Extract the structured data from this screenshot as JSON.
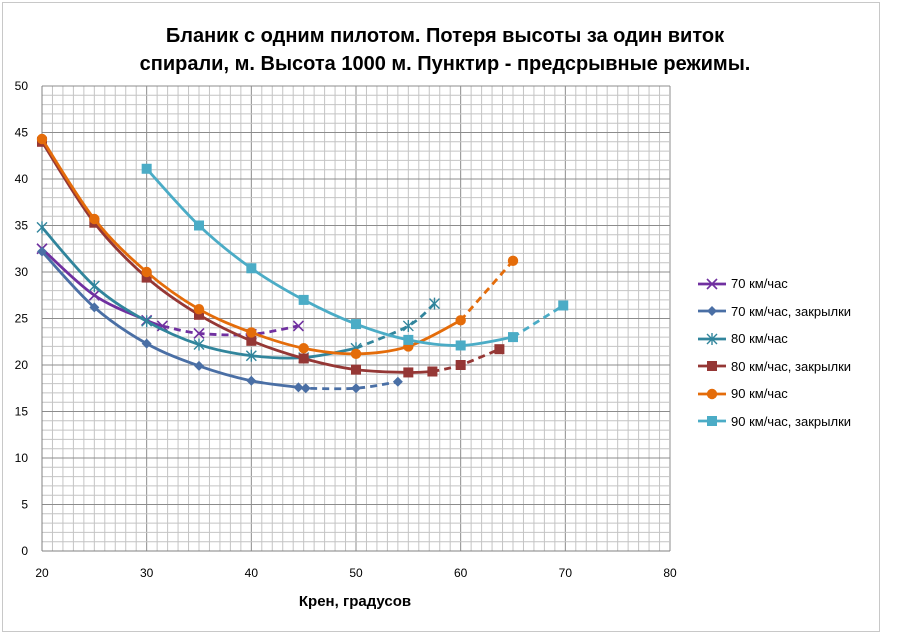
{
  "chart_data": {
    "type": "line",
    "title_lines": [
      "Бланик с одним пилотом. Потеря высоты за один виток",
      "спирали, м. Высота 1000 м. Пунктир - предсрывные режимы."
    ],
    "xlabel": "Крен, градусов",
    "ylabel": "",
    "xlim": [
      20,
      80
    ],
    "ylim": [
      0,
      50
    ],
    "x_ticks": [
      20,
      30,
      40,
      50,
      60,
      70,
      80
    ],
    "y_ticks": [
      0,
      5,
      10,
      15,
      20,
      25,
      30,
      35,
      40,
      45,
      50
    ],
    "grid": true,
    "legend_position": "right",
    "series": [
      {
        "name": "70 км/час",
        "color": "#7030a0",
        "marker": "x",
        "solid": [
          [
            20,
            32.5
          ],
          [
            25,
            27.5
          ],
          [
            30,
            24.8
          ],
          [
            31.5,
            24.2
          ]
        ],
        "dashed": [
          [
            31.5,
            24.2
          ],
          [
            35,
            23.4
          ],
          [
            40,
            23.3
          ],
          [
            44.5,
            24.2
          ]
        ]
      },
      {
        "name": "70 км/час, закрылки",
        "color": "#4a6fa5",
        "marker": "diamond",
        "solid": [
          [
            20,
            32.2
          ],
          [
            25,
            26.2
          ],
          [
            30,
            22.3
          ],
          [
            35,
            19.9
          ],
          [
            40,
            18.3
          ],
          [
            44.5,
            17.6
          ]
        ],
        "dashed": [
          [
            44.5,
            17.6
          ],
          [
            45.2,
            17.5
          ],
          [
            50,
            17.5
          ],
          [
            54,
            18.2
          ]
        ]
      },
      {
        "name": "80 км/час",
        "color": "#31859c",
        "marker": "star",
        "solid": [
          [
            20,
            34.8
          ],
          [
            25,
            28.5
          ],
          [
            30,
            24.7
          ],
          [
            35,
            22.2
          ],
          [
            40,
            21
          ],
          [
            45,
            20.8
          ],
          [
            50,
            21.8
          ]
        ],
        "dashed": [
          [
            50,
            21.8
          ],
          [
            55,
            24.2
          ],
          [
            57.5,
            26.6
          ]
        ]
      },
      {
        "name": "80 км/час, закрылки",
        "color": "#953735",
        "marker": "square",
        "solid": [
          [
            20,
            44
          ],
          [
            25,
            35.3
          ],
          [
            30,
            29.4
          ],
          [
            35,
            25.4
          ],
          [
            40,
            22.6
          ],
          [
            45,
            20.7
          ],
          [
            50,
            19.5
          ],
          [
            55,
            19.2
          ],
          [
            57.3,
            19.3
          ]
        ],
        "dashed": [
          [
            57.3,
            19.3
          ],
          [
            60,
            20
          ],
          [
            63.7,
            21.7
          ]
        ]
      },
      {
        "name": "90 км/час",
        "color": "#e46c0a",
        "marker": "circle",
        "solid": [
          [
            20,
            44.3
          ],
          [
            25,
            35.7
          ],
          [
            30,
            30
          ],
          [
            35,
            26
          ],
          [
            40,
            23.5
          ],
          [
            45,
            21.8
          ],
          [
            50,
            21.2
          ],
          [
            55,
            22
          ],
          [
            60,
            24.8
          ]
        ],
        "dashed": [
          [
            60,
            24.8
          ],
          [
            65,
            31.2
          ]
        ]
      },
      {
        "name": "90 км/час, закрылки",
        "color": "#4bacc6",
        "marker": "square",
        "solid": [
          [
            30,
            41.1
          ],
          [
            35,
            35
          ],
          [
            40,
            30.4
          ],
          [
            45,
            27
          ],
          [
            50,
            24.4
          ],
          [
            55,
            22.7
          ],
          [
            60,
            22.1
          ],
          [
            65,
            23
          ]
        ],
        "dashed": [
          [
            65,
            23
          ],
          [
            69.8,
            26.4
          ]
        ]
      }
    ]
  }
}
